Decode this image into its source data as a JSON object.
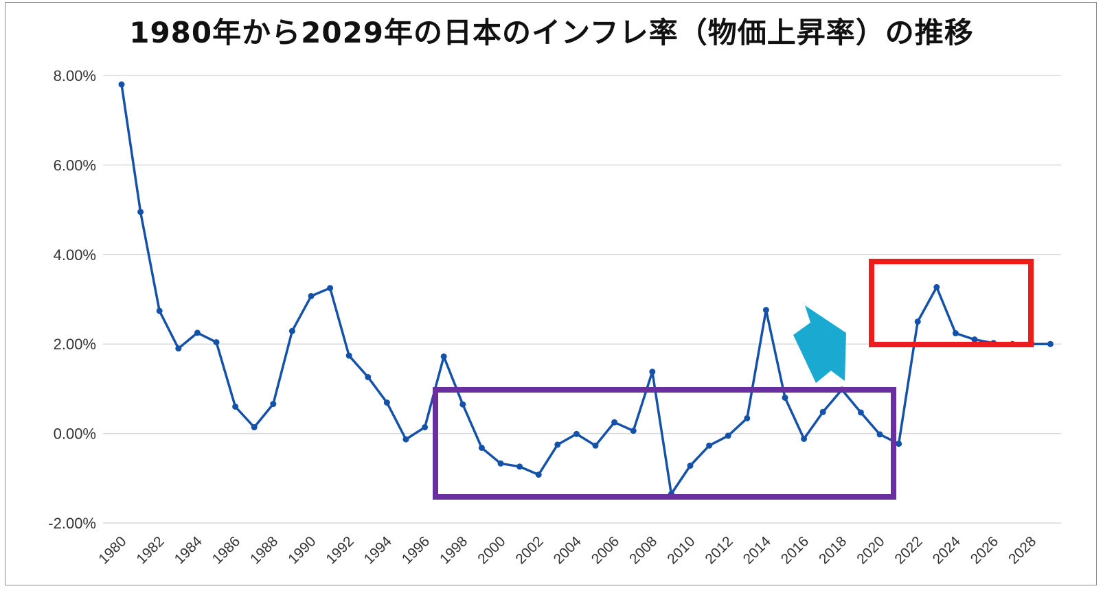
{
  "chart_data": {
    "type": "line",
    "title": "1980年から2029年の日本のインフレ率（物価上昇率）の推移",
    "xlabel": "",
    "ylabel": "",
    "ylim": [
      -2,
      8
    ],
    "y_ticks": [
      "8.00%",
      "6.00%",
      "4.00%",
      "2.00%",
      "0.00%",
      "-2.00%"
    ],
    "y_tick_values": [
      8,
      6,
      4,
      2,
      0,
      -2
    ],
    "x_tick_labels": [
      "1980",
      "1982",
      "1984",
      "1986",
      "1988",
      "1990",
      "1992",
      "1994",
      "1996",
      "1998",
      "2000",
      "2002",
      "2004",
      "2006",
      "2008",
      "2010",
      "2012",
      "2014",
      "2016",
      "2018",
      "2020",
      "2022",
      "2024",
      "2026",
      "2028"
    ],
    "grid": true,
    "legend": "none",
    "x": [
      1980,
      1981,
      1982,
      1983,
      1984,
      1985,
      1986,
      1987,
      1988,
      1989,
      1990,
      1991,
      1992,
      1993,
      1994,
      1995,
      1996,
      1997,
      1998,
      1999,
      2000,
      2001,
      2002,
      2003,
      2004,
      2005,
      2006,
      2007,
      2008,
      2009,
      2010,
      2011,
      2012,
      2013,
      2014,
      2015,
      2016,
      2017,
      2018,
      2019,
      2020,
      2021,
      2022,
      2023,
      2024,
      2025,
      2026,
      2027,
      2028,
      2029
    ],
    "series": [
      {
        "values": [
          7.8,
          4.95,
          2.74,
          1.9,
          2.25,
          2.04,
          0.6,
          0.14,
          0.66,
          2.29,
          3.07,
          3.25,
          1.74,
          1.26,
          0.69,
          -0.13,
          0.14,
          1.72,
          0.65,
          -0.32,
          -0.67,
          -0.74,
          -0.92,
          -0.25,
          -0.01,
          -0.27,
          0.25,
          0.06,
          1.38,
          -1.35,
          -0.72,
          -0.27,
          -0.05,
          0.34,
          2.76,
          0.8,
          -0.12,
          0.48,
          0.98,
          0.47,
          -0.02,
          -0.23,
          2.5,
          3.27,
          2.24,
          2.1,
          2.02,
          2.0,
          2.0,
          2.0
        ]
      }
    ],
    "colors": {
      "line": "#1451a8",
      "grid": "#d9d9d9",
      "highlight_purple": "#6a2f9e",
      "highlight_red": "#ee1c1c",
      "arrow": "#19a9d1"
    },
    "annotations": [
      {
        "shape": "rectangle",
        "color": "purple",
        "x_range": [
          1997,
          2021
        ],
        "y_range": [
          -1.8,
          0.75
        ]
      },
      {
        "shape": "rectangle",
        "color": "red",
        "x_range": [
          2021.8,
          2030
        ],
        "y_range": [
          1.7,
          3.7
        ]
      },
      {
        "shape": "arrow",
        "color": "cyan",
        "direction": "down-right"
      }
    ]
  }
}
